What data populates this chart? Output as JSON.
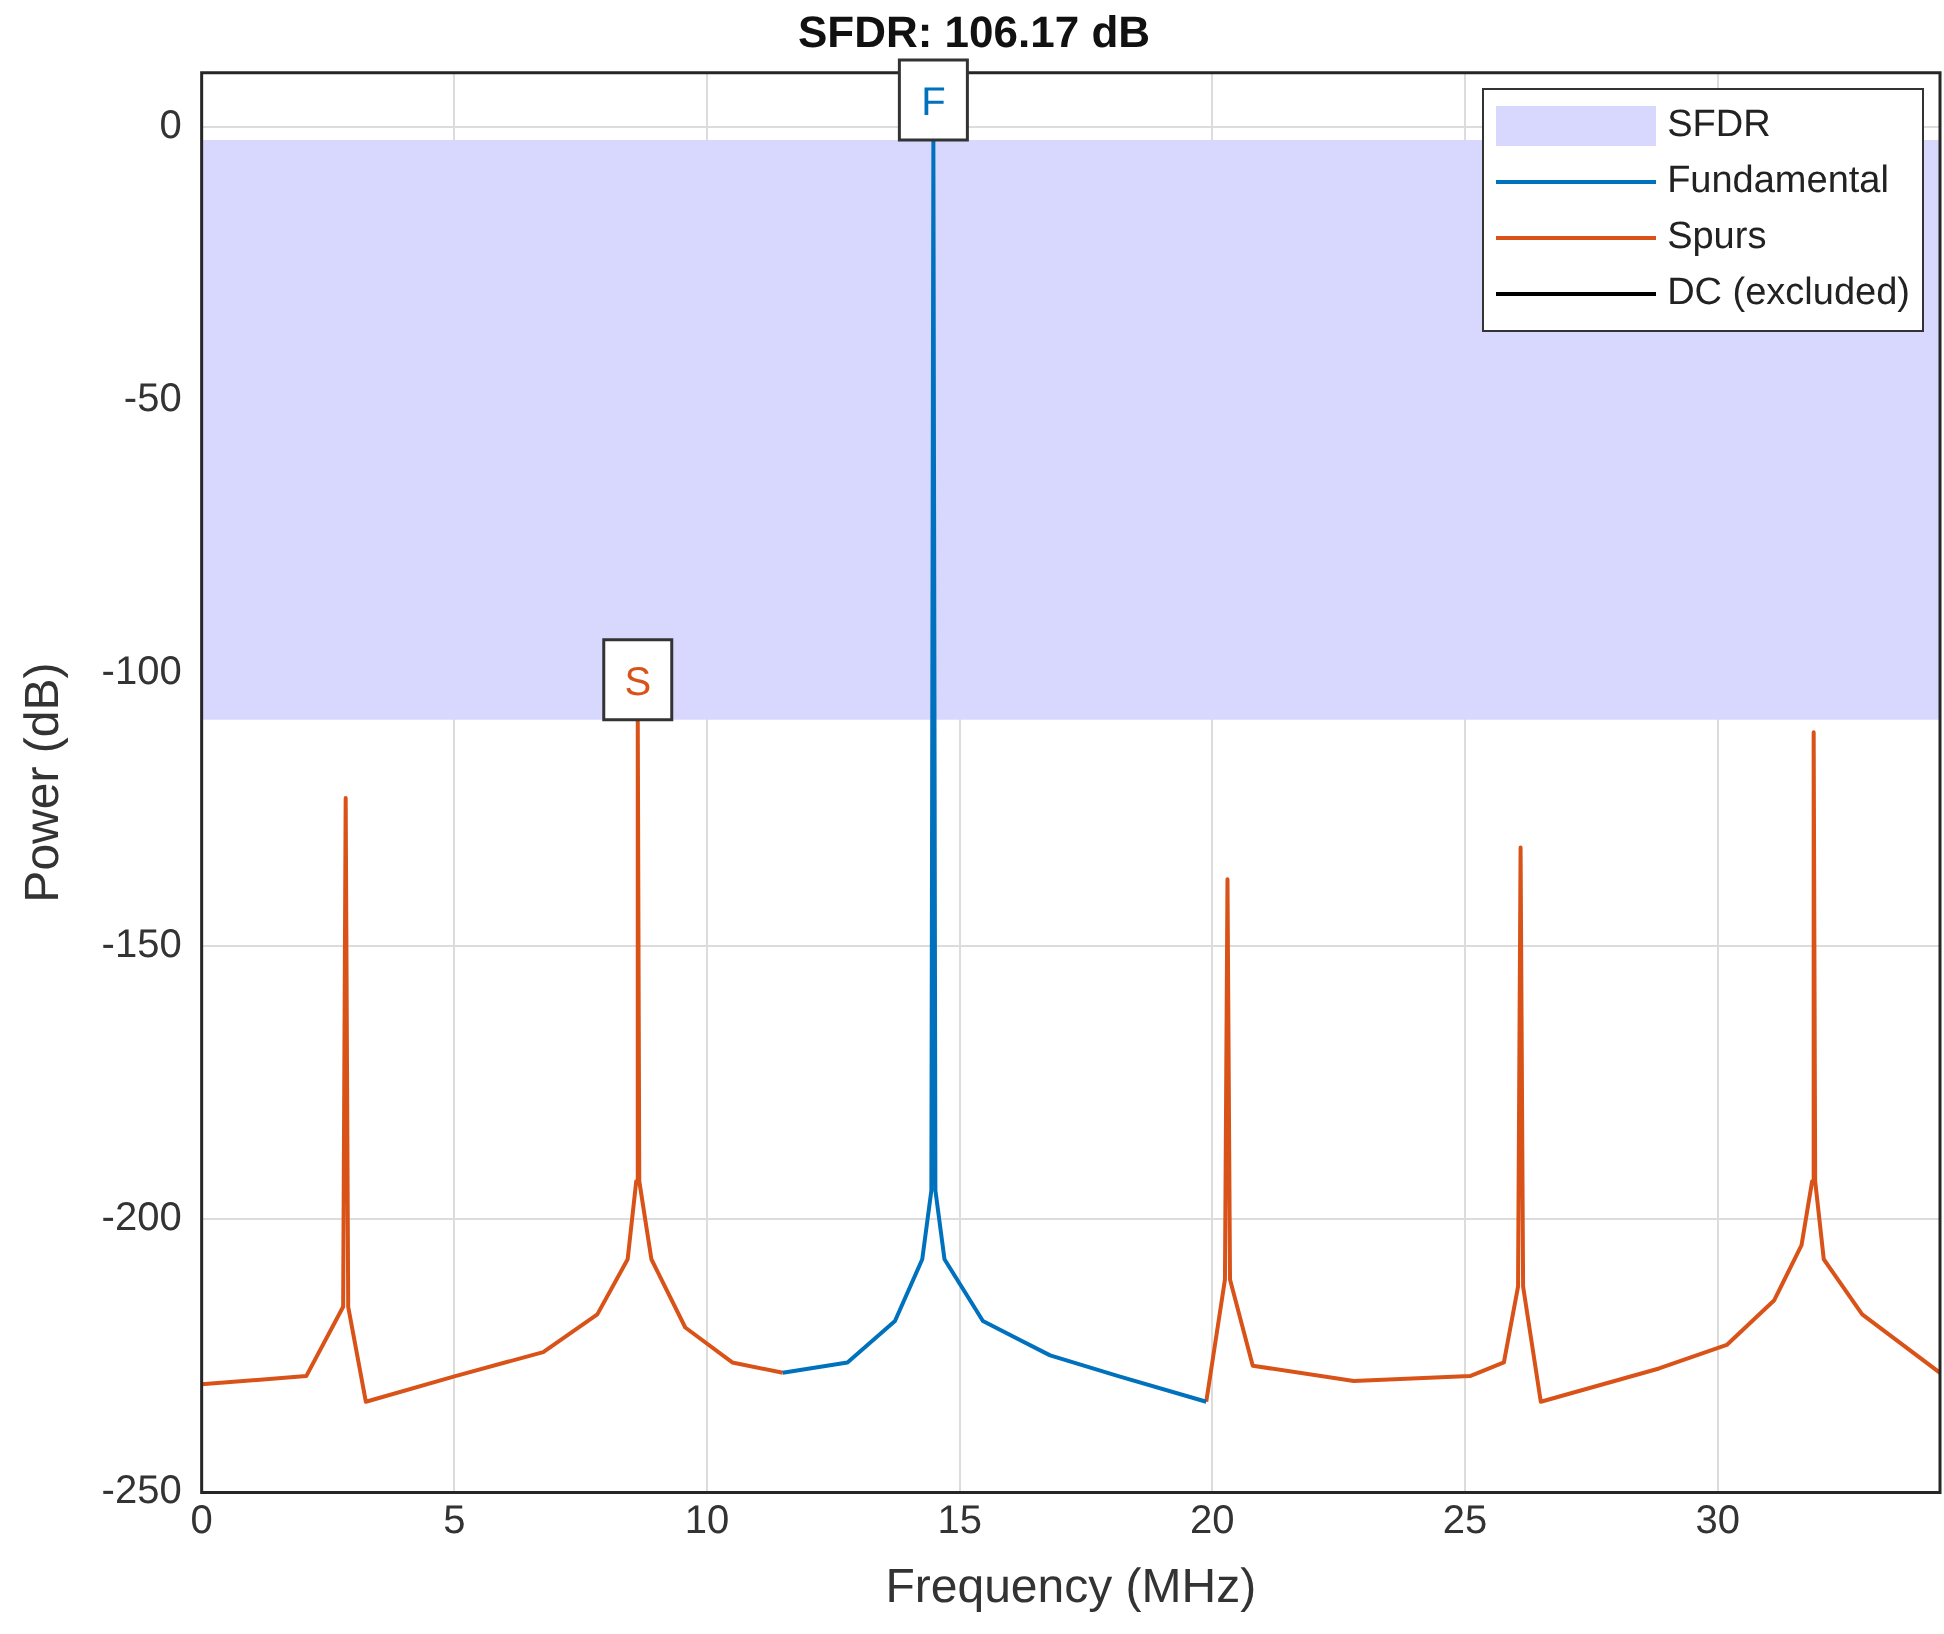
{
  "chart_data": {
    "type": "line",
    "title": "SFDR: 106.17 dB",
    "xlabel": "Frequency (MHz)",
    "ylabel": "Power (dB)",
    "xlim": [
      0,
      34.4
    ],
    "xticks": [
      0,
      5,
      10,
      15,
      20,
      25,
      30
    ],
    "ylim": [
      -250,
      10
    ],
    "yticks": [
      -250,
      -200,
      -150,
      -100,
      -50,
      0
    ],
    "grid": true,
    "legend": "top right",
    "bands": [
      {
        "axis": "y",
        "from": -108.5,
        "to": -2.3,
        "label": "SFDR",
        "color": "#d8d8ff"
      }
    ],
    "annotations": [
      {
        "text": "F",
        "x": 14.48,
        "y": -2.3
      },
      {
        "text": "S",
        "x": 8.63,
        "y": -108.5
      }
    ],
    "series": [
      {
        "name": "Fundamental",
        "color": "#0072bd",
        "x": [
          11.5,
          12.78,
          13.72,
          14.26,
          14.44,
          14.48,
          14.52,
          14.7,
          15.46,
          16.79,
          18.14,
          19.88
        ],
        "values": [
          -228.1,
          -226.2,
          -218.6,
          -207.3,
          -194.7,
          -2.3,
          -194.7,
          -207.3,
          -218.6,
          -224.9,
          -228.7,
          -233.4
        ]
      },
      {
        "name": "Spurs",
        "color": "#d95319",
        "x": [
          0,
          2.07,
          2.8,
          2.85,
          2.9,
          3.25,
          5.02,
          6.76,
          7.83,
          8.43,
          8.6,
          8.63,
          8.66,
          8.9,
          9.57,
          10.5,
          11.5,
          15,
          19.88,
          20.25,
          20.3,
          20.35,
          20.8,
          22.8,
          25.1,
          25.77,
          26.05,
          26.1,
          26.15,
          26.5,
          28.84,
          30.18,
          31.12,
          31.66,
          31.87,
          31.9,
          31.93,
          32.1,
          32.86,
          34.4
        ],
        "values": [
          -230.2,
          -228.7,
          -216,
          -122.8,
          -216,
          -233.4,
          -228.7,
          -224.3,
          -217.4,
          -207.3,
          -193,
          -108.5,
          -193,
          -207.3,
          -219.8,
          -226.2,
          -228.1,
          null,
          -233.4,
          -211,
          -137.7,
          -211,
          -226.8,
          -229.6,
          -228.7,
          -226.2,
          -212.3,
          -131.9,
          -212.3,
          -233.4,
          -227.3,
          -223,
          -214.8,
          -204.7,
          -193,
          -110.8,
          -193,
          -207.3,
          -217.4,
          -228.1
        ]
      },
      {
        "name": "DC (excluded)",
        "color": "#000000"
      }
    ]
  }
}
